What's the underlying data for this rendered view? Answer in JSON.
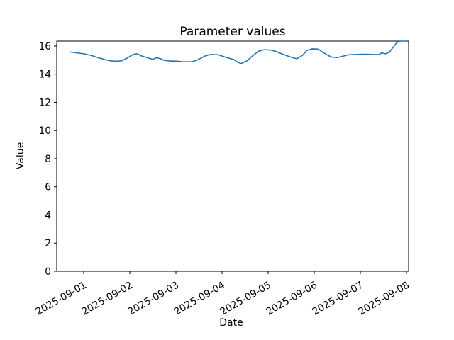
{
  "figure": {
    "background": "#ffffff",
    "spine_color": "#000000",
    "text_color": "#000000"
  },
  "chart_data": {
    "type": "line",
    "title": "Parameter values",
    "xlabel": "Date",
    "ylabel": "Value",
    "grid": false,
    "legend": null,
    "x_axis": {
      "tick_labels": [
        "2025-09-01",
        "2025-09-02",
        "2025-09-03",
        "2025-09-04",
        "2025-09-05",
        "2025-09-06",
        "2025-09-07",
        "2025-09-08"
      ],
      "tick_rotation_deg": 30,
      "range_days_from_first_tick": [
        -0.585,
        7.046
      ]
    },
    "y_axis": {
      "ticks": [
        0,
        2,
        4,
        6,
        8,
        10,
        12,
        14,
        16
      ],
      "range": [
        0,
        16.35
      ]
    },
    "series": [
      {
        "name": "Parameter values",
        "color": "#1f77b4",
        "points": [
          [
            "2025-08-31 17:00",
            15.58
          ],
          [
            "2025-08-31 20:00",
            15.52
          ],
          [
            "2025-09-01 00:00",
            15.45
          ],
          [
            "2025-09-01 04:00",
            15.33
          ],
          [
            "2025-09-01 07:00",
            15.2
          ],
          [
            "2025-09-01 11:00",
            15.04
          ],
          [
            "2025-09-01 14:00",
            14.95
          ],
          [
            "2025-09-01 17:00",
            14.92
          ],
          [
            "2025-09-01 20:00",
            14.96
          ],
          [
            "2025-09-01 23:00",
            15.18
          ],
          [
            "2025-09-02 02:00",
            15.42
          ],
          [
            "2025-09-02 04:00",
            15.45
          ],
          [
            "2025-09-02 06:00",
            15.3
          ],
          [
            "2025-09-02 09:00",
            15.18
          ],
          [
            "2025-09-02 12:00",
            15.05
          ],
          [
            "2025-09-02 14:00",
            15.18
          ],
          [
            "2025-09-02 16:00",
            15.1
          ],
          [
            "2025-09-02 18:00",
            14.98
          ],
          [
            "2025-09-02 21:00",
            14.94
          ],
          [
            "2025-09-03 01:00",
            14.92
          ],
          [
            "2025-09-03 04:00",
            14.88
          ],
          [
            "2025-09-03 08:00",
            14.88
          ],
          [
            "2025-09-03 11:00",
            15.0
          ],
          [
            "2025-09-03 15:00",
            15.28
          ],
          [
            "2025-09-03 18:00",
            15.4
          ],
          [
            "2025-09-03 22:00",
            15.38
          ],
          [
            "2025-09-04 02:00",
            15.2
          ],
          [
            "2025-09-04 06:00",
            15.05
          ],
          [
            "2025-09-04 08:00",
            14.86
          ],
          [
            "2025-09-04 10:00",
            14.76
          ],
          [
            "2025-09-04 13:00",
            14.95
          ],
          [
            "2025-09-04 16:00",
            15.32
          ],
          [
            "2025-09-04 19:00",
            15.63
          ],
          [
            "2025-09-04 22:00",
            15.74
          ],
          [
            "2025-09-05 01:00",
            15.72
          ],
          [
            "2025-09-05 04:00",
            15.62
          ],
          [
            "2025-09-05 07:00",
            15.45
          ],
          [
            "2025-09-05 10:00",
            15.3
          ],
          [
            "2025-09-05 13:00",
            15.16
          ],
          [
            "2025-09-05 15:00",
            15.1
          ],
          [
            "2025-09-05 18:00",
            15.35
          ],
          [
            "2025-09-05 20:00",
            15.68
          ],
          [
            "2025-09-05 23:00",
            15.8
          ],
          [
            "2025-09-06 02:00",
            15.78
          ],
          [
            "2025-09-06 04:00",
            15.6
          ],
          [
            "2025-09-06 07:00",
            15.35
          ],
          [
            "2025-09-06 09:00",
            15.22
          ],
          [
            "2025-09-06 12:00",
            15.18
          ],
          [
            "2025-09-06 15:00",
            15.28
          ],
          [
            "2025-09-06 18:00",
            15.38
          ],
          [
            "2025-09-06 21:00",
            15.4
          ],
          [
            "2025-09-07 03:00",
            15.42
          ],
          [
            "2025-09-07 07:00",
            15.4
          ],
          [
            "2025-09-07 10:00",
            15.4
          ],
          [
            "2025-09-07 11:00",
            15.52
          ],
          [
            "2025-09-07 13:00",
            15.45
          ],
          [
            "2025-09-07 15:00",
            15.55
          ],
          [
            "2025-09-07 17:00",
            15.9
          ],
          [
            "2025-09-07 19:00",
            16.25
          ],
          [
            "2025-09-07 21:00",
            16.35
          ],
          [
            "2025-09-07 23:00",
            16.35
          ]
        ]
      }
    ]
  }
}
